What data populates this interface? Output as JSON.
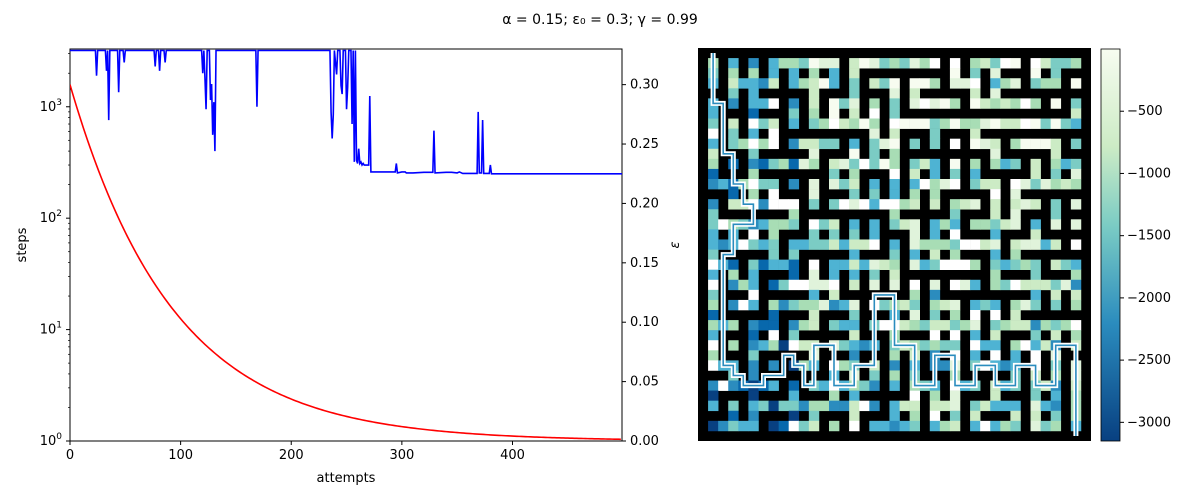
{
  "figure": {
    "title": "α = 0.15; ε₀ = 0.3; γ = 0.99"
  },
  "chart_data": [
    {
      "type": "line",
      "xlabel": "attempts",
      "xlim": [
        0,
        499
      ],
      "x_ticks": [
        0,
        100,
        200,
        300,
        400
      ],
      "series": [
        {
          "name": "steps",
          "axis": "left",
          "color": "#0000ff",
          "ylabel": "steps",
          "yscale": "log",
          "ylim": [
            1,
            3300
          ],
          "y_ticks": [
            "10^0",
            "10^1",
            "10^2",
            "10^3"
          ],
          "points": [
            [
              0,
              3200
            ],
            [
              23,
              3200
            ],
            [
              24,
              1900
            ],
            [
              25,
              3200
            ],
            [
              32,
              3200
            ],
            [
              33,
              2100
            ],
            [
              34,
              3200
            ],
            [
              35,
              760
            ],
            [
              36,
              3200
            ],
            [
              43,
              3200
            ],
            [
              44,
              1350
            ],
            [
              45,
              3200
            ],
            [
              48,
              3200
            ],
            [
              49,
              2500
            ],
            [
              50,
              3200
            ],
            [
              76,
              3200
            ],
            [
              77,
              2300
            ],
            [
              78,
              3200
            ],
            [
              80,
              3200
            ],
            [
              81,
              2100
            ],
            [
              82,
              3200
            ],
            [
              85,
              3200
            ],
            [
              86,
              2500
            ],
            [
              87,
              3200
            ],
            [
              119,
              3200
            ],
            [
              120,
              2000
            ],
            [
              121,
              3200
            ],
            [
              122,
              1800
            ],
            [
              123,
              950
            ],
            [
              124,
              3200
            ],
            [
              126,
              3200
            ],
            [
              127,
              1150
            ],
            [
              128,
              1600
            ],
            [
              129,
              560
            ],
            [
              130,
              1100
            ],
            [
              131,
              400
            ],
            [
              132,
              3200
            ],
            [
              168,
              3200
            ],
            [
              169,
              1000
            ],
            [
              170,
              3200
            ],
            [
              235,
              3200
            ],
            [
              236,
              900
            ],
            [
              237,
              520
            ],
            [
              238,
              850
            ],
            [
              239,
              3200
            ],
            [
              241,
              1950
            ],
            [
              242,
              3200
            ],
            [
              244,
              3200
            ],
            [
              245,
              1550
            ],
            [
              246,
              1300
            ],
            [
              247,
              3200
            ],
            [
              249,
              3200
            ],
            [
              250,
              950
            ],
            [
              251,
              1500
            ],
            [
              252,
              3200
            ],
            [
              254,
              3200
            ],
            [
              255,
              700
            ],
            [
              256,
              3200
            ],
            [
              257,
              320
            ],
            [
              258,
              3200
            ],
            [
              259,
              330
            ],
            [
              260,
              310
            ],
            [
              261,
              420
            ],
            [
              262,
              310
            ],
            [
              263,
              320
            ],
            [
              264,
              300
            ],
            [
              265,
              310
            ],
            [
              266,
              300
            ],
            [
              268,
              300
            ],
            [
              270,
              300
            ],
            [
              271,
              1250
            ],
            [
              272,
              260
            ],
            [
              280,
              260
            ],
            [
              290,
              260
            ],
            [
              294,
              260
            ],
            [
              295,
              310
            ],
            [
              296,
              255
            ],
            [
              300,
              260
            ],
            [
              303,
              260
            ],
            [
              304,
              255
            ],
            [
              310,
              255
            ],
            [
              320,
              258
            ],
            [
              328,
              258
            ],
            [
              329,
              610
            ],
            [
              330,
              255
            ],
            [
              340,
              258
            ],
            [
              345,
              258
            ],
            [
              350,
              255
            ],
            [
              352,
              260
            ],
            [
              355,
              252
            ],
            [
              368,
              252
            ],
            [
              369,
              900
            ],
            [
              370,
              255
            ],
            [
              372,
              255
            ],
            [
              373,
              760
            ],
            [
              374,
              252
            ],
            [
              379,
              252
            ],
            [
              380,
              300
            ],
            [
              381,
              250
            ],
            [
              390,
              250
            ],
            [
              400,
              250
            ],
            [
              450,
              250
            ],
            [
              499,
              250
            ]
          ]
        },
        {
          "name": "ε",
          "axis": "right",
          "color": "#ff0000",
          "ylabel": "ε",
          "yscale": "linear",
          "ylim": [
            0.0,
            0.33
          ],
          "y_ticks": [
            "0.00",
            "0.05",
            "0.10",
            "0.15",
            "0.20",
            "0.25",
            "0.30"
          ],
          "formula": "0.3*exp(-0.0107*x)",
          "sample_values": [
            [
              0,
              0.3
            ],
            [
              100,
              0.103
            ],
            [
              200,
              0.035
            ],
            [
              300,
              0.012
            ],
            [
              499,
              0.0015
            ]
          ]
        }
      ],
      "grid": false
    },
    {
      "type": "heatmap",
      "description": "maze value map with overlaid solution path",
      "colormap": "GnBu_r",
      "colorbar": {
        "range": [
          -3150,
          0
        ],
        "ticks": [
          "−500",
          "−1000",
          "−1500",
          "−2000",
          "−2500",
          "−3000"
        ],
        "tick_values": [
          -500,
          -1000,
          -1500,
          -2000,
          -2500,
          -3000
        ]
      },
      "grid_size": [
        39,
        39
      ]
    }
  ],
  "colors": {
    "steps_line": "#0000ff",
    "epsilon_line": "#ff0000",
    "wall": "#000000",
    "path": "#ffffff"
  }
}
